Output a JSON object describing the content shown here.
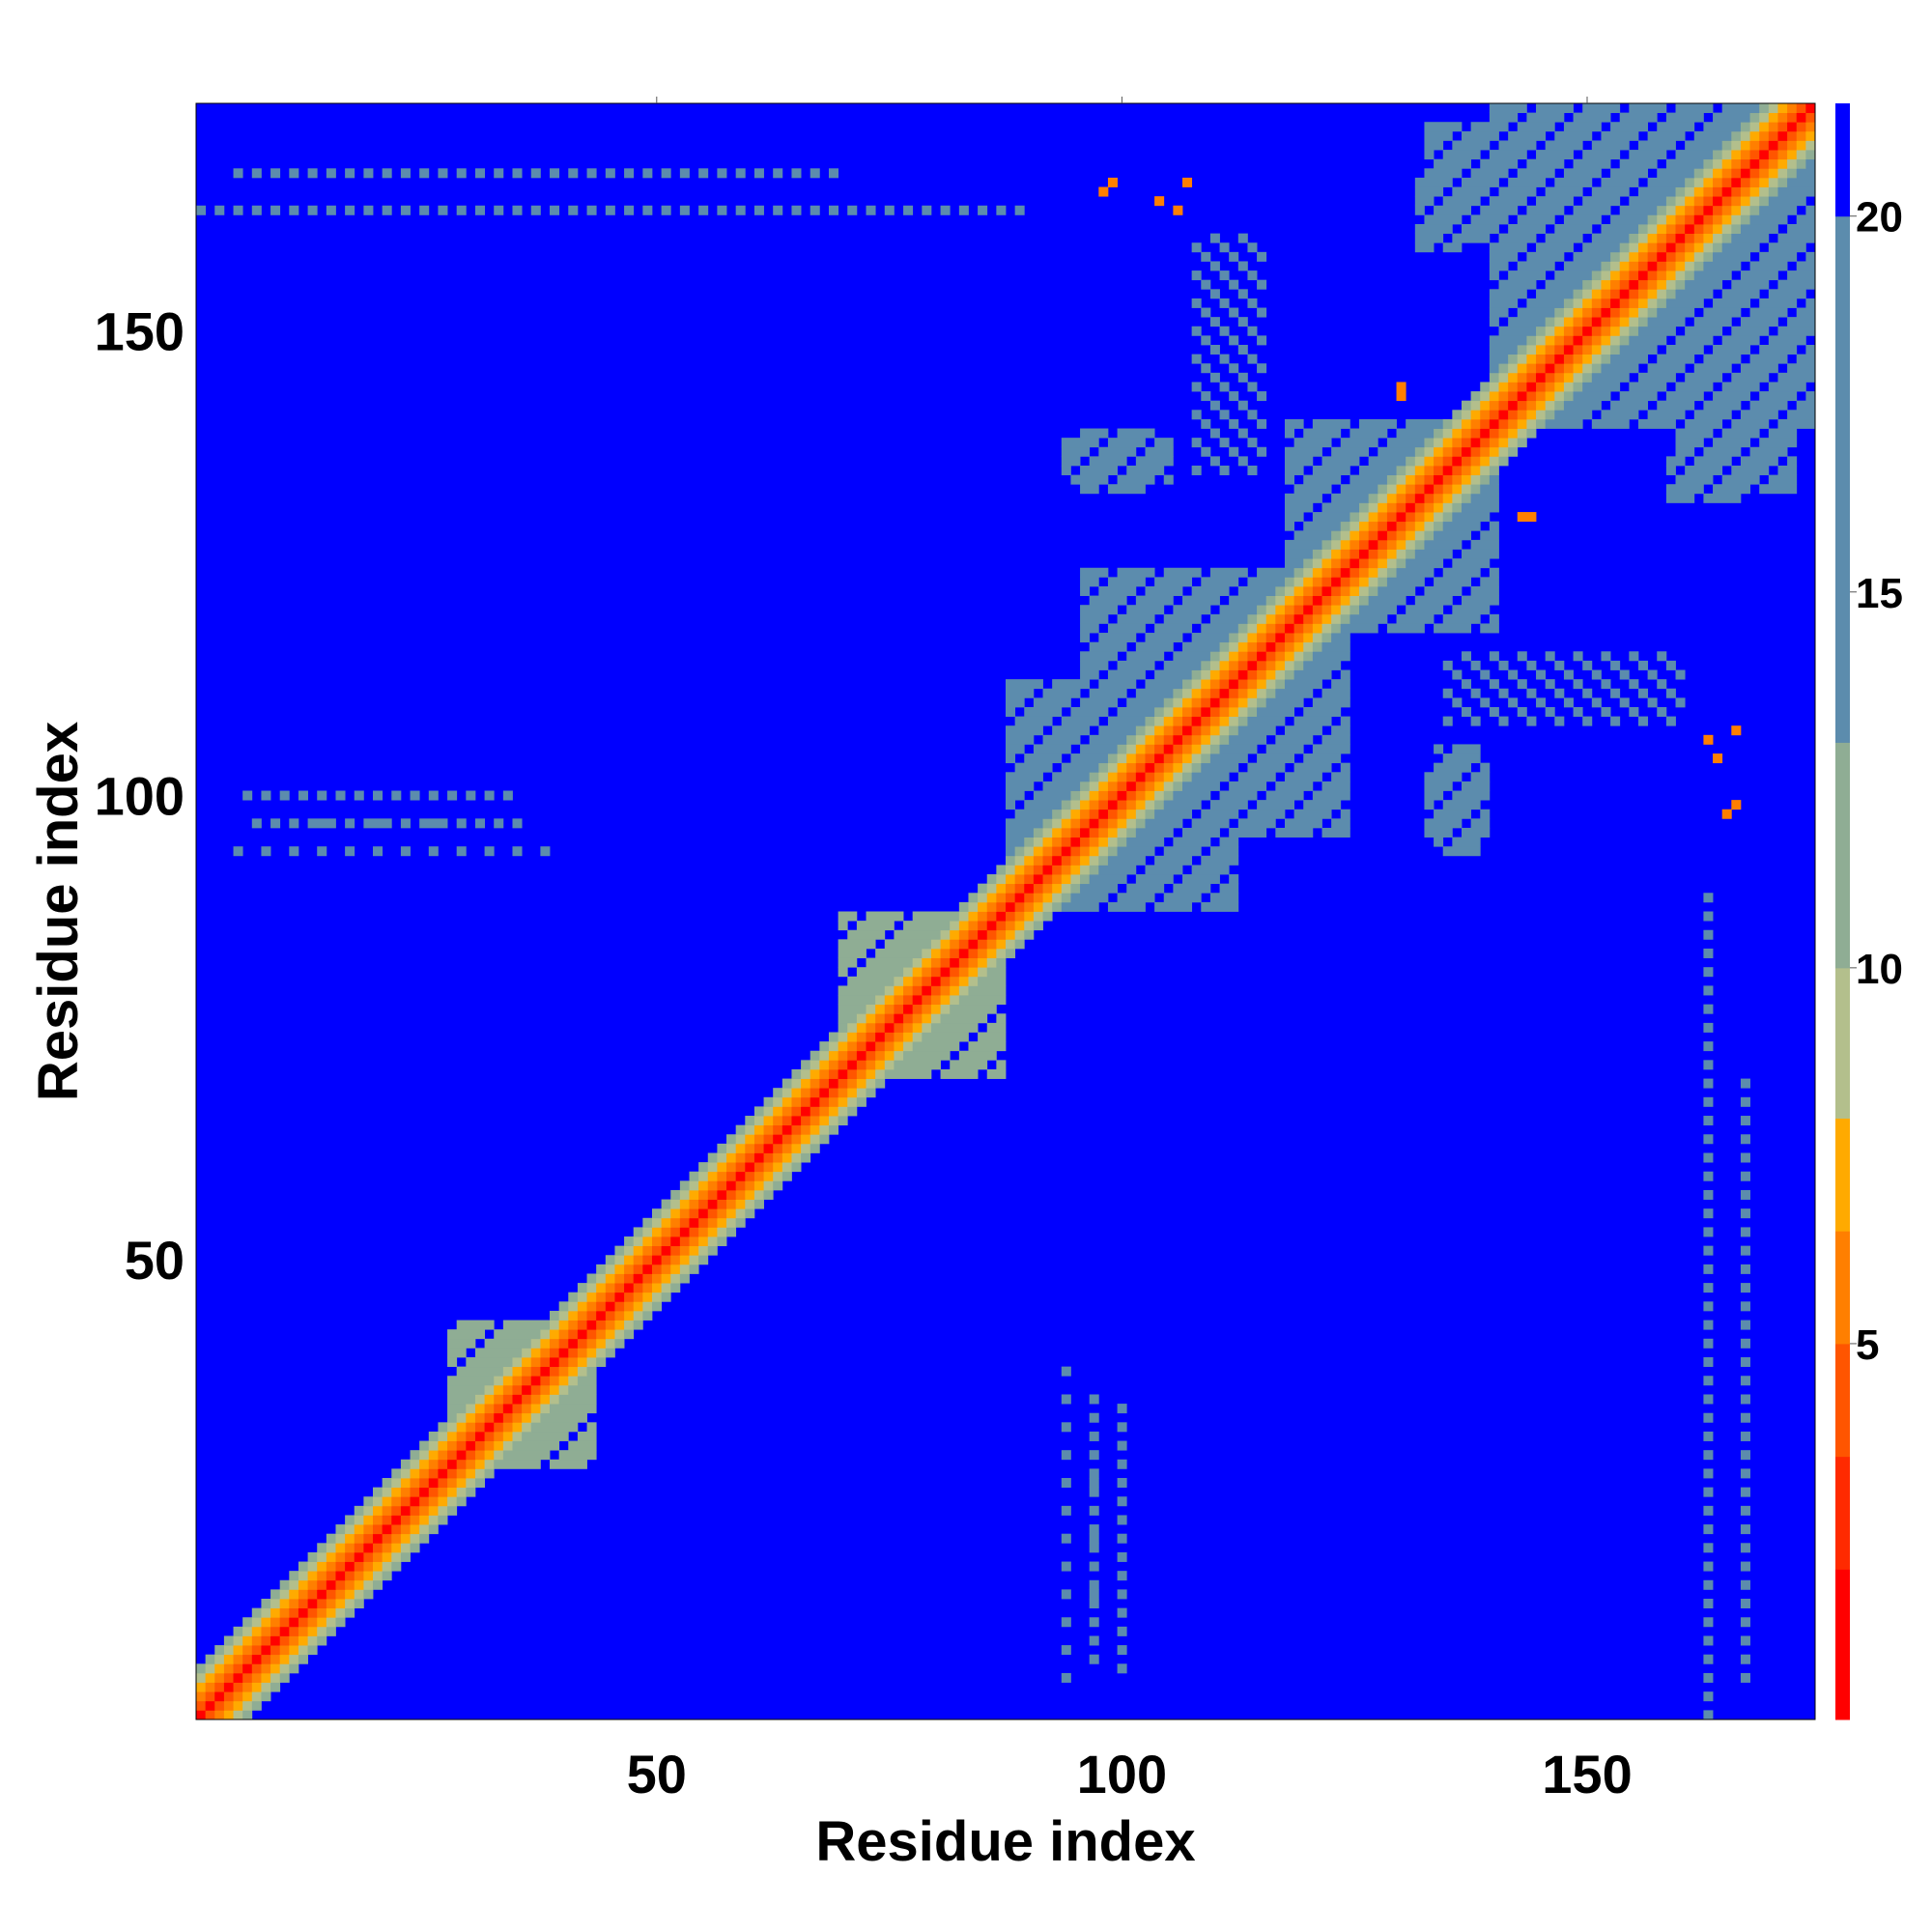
{
  "chart_data": {
    "type": "heatmap",
    "title": "",
    "xlabel": "Residue index",
    "ylabel": "Residue index",
    "xlim": [
      1,
      174
    ],
    "ylim": [
      1,
      174
    ],
    "x_ticks": [
      50,
      100,
      150
    ],
    "y_ticks": [
      50,
      100,
      150
    ],
    "colorbar": {
      "range": [
        0,
        21.5
      ],
      "ticks": [
        5,
        10,
        15,
        20
      ],
      "colors": [
        "#ff0000",
        "#ff2a00",
        "#ff5500",
        "#ff7f00",
        "#ffaa00",
        "#b3bf8c",
        "#8fad94",
        "#5c8cad",
        "#0000ff"
      ],
      "bounds": [
        0,
        2,
        3.5,
        5,
        6.5,
        8,
        10,
        13,
        20,
        21.5
      ]
    },
    "matrix_description": "Symmetric residue-residue distance map; near-diagonal distances are low (red/orange), band broadens into green/grey clusters, off-diagonal mostly saturated blue (>20).",
    "band": [
      {
        "from": 1,
        "to": 174,
        "offset": 0,
        "value": 0
      },
      {
        "from": 1,
        "to": 174,
        "offset": 1,
        "value": 3.8
      },
      {
        "from": 1,
        "to": 174,
        "offset": 2,
        "value": 5.5
      },
      {
        "from": 1,
        "to": 174,
        "offset": 3,
        "value": 7.5
      },
      {
        "from": 1,
        "to": 174,
        "offset": 4,
        "value": 9.5
      },
      {
        "from": 1,
        "to": 174,
        "offset": 5,
        "value": 11.5
      }
    ],
    "clusters": [
      {
        "x": [
          88,
          106
        ],
        "y": [
          88,
          112
        ],
        "value": 14
      },
      {
        "x": [
          96,
          122
        ],
        "y": [
          100,
          124
        ],
        "value": 14
      },
      {
        "x": [
          118,
          138
        ],
        "y": [
          118,
          140
        ],
        "value": 13
      },
      {
        "x": [
          140,
          174
        ],
        "y": [
          140,
          174
        ],
        "value": 13
      },
      {
        "x": [
          94,
          105
        ],
        "y": [
          134,
          138
        ],
        "value": 17
      },
      {
        "x": [
          159,
          167
        ],
        "y": [
          132,
          136
        ],
        "value": 17
      },
      {
        "x": [
          133,
          139
        ],
        "y": [
          96,
          103
        ],
        "value": 17
      },
      {
        "x": [
          133,
          143
        ],
        "y": [
          160,
          172
        ],
        "value": 17
      },
      {
        "x": [
          28,
          42
        ],
        "y": [
          30,
          43
        ],
        "value": 11
      },
      {
        "x": [
          70,
          87
        ],
        "y": [
          70,
          87
        ],
        "value": 11
      }
    ],
    "hotspots": [
      {
        "x": 163,
        "y": 106,
        "value": 6
      },
      {
        "x": 164,
        "y": 104,
        "value": 5
      },
      {
        "x": 165,
        "y": 98,
        "value": 6
      },
      {
        "x": 99,
        "y": 166,
        "value": 6
      },
      {
        "x": 107,
        "y": 166,
        "value": 6
      },
      {
        "x": 130,
        "y": 144,
        "value": 6
      },
      {
        "x": 143,
        "y": 130,
        "value": 6
      }
    ],
    "lines": [
      {
        "x": 163,
        "y": [
          1,
          90
        ],
        "value": 17,
        "step": 2
      },
      {
        "x": 94,
        "y": [
          5,
          40
        ],
        "value": 17,
        "step": 3
      },
      {
        "x": 97,
        "y": [
          10,
          30
        ],
        "value": 17,
        "step": 3
      },
      {
        "x": [
          5,
          70
        ],
        "y": 167,
        "value": 17,
        "step": 2
      },
      {
        "x": [
          6,
          35
        ],
        "y": 100,
        "value": 17,
        "step": 2
      },
      {
        "x": [
          6,
          35
        ],
        "y": 97,
        "value": 17,
        "step": 2
      },
      {
        "x": [
          135,
          160
        ],
        "y": [
          108,
          115
        ],
        "value": 17,
        "step": 3
      }
    ]
  }
}
